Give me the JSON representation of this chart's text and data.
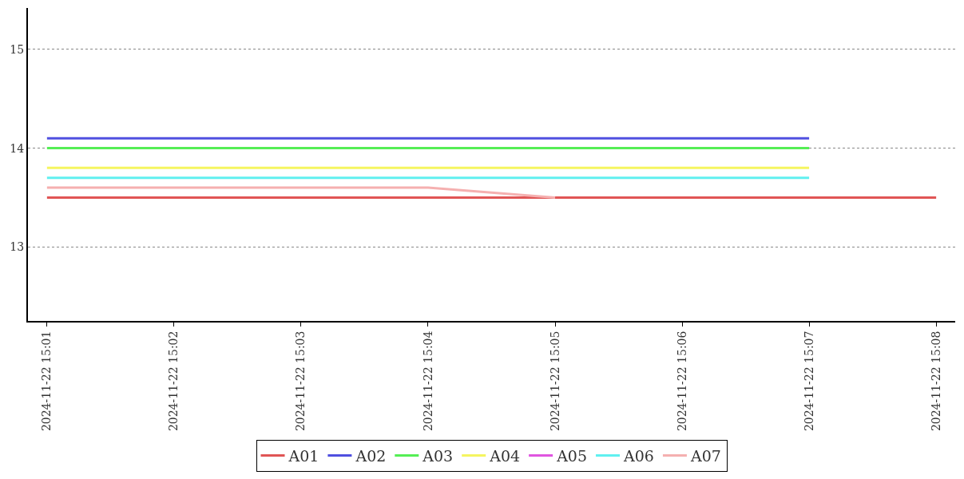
{
  "chart_data": {
    "type": "line",
    "categories": [
      "2024-11-22 15:01",
      "2024-11-22 15:02",
      "2024-11-22 15:03",
      "2024-11-22 15:04",
      "2024-11-22 15:05",
      "2024-11-22 15:06",
      "2024-11-22 15:07",
      "2024-11-22 15:08"
    ],
    "series": [
      {
        "name": "A01",
        "color": "#e05555",
        "values": [
          13.5,
          13.5,
          13.5,
          13.5,
          13.5,
          13.5,
          13.5,
          13.5
        ]
      },
      {
        "name": "A02",
        "color": "#5050e0",
        "values": [
          14.1,
          14.1,
          14.1,
          14.1,
          14.1,
          14.1,
          14.1,
          null
        ]
      },
      {
        "name": "A03",
        "color": "#55ee55",
        "values": [
          14.0,
          14.0,
          14.0,
          14.0,
          14.0,
          14.0,
          14.0,
          null
        ]
      },
      {
        "name": "A04",
        "color": "#f5f560",
        "values": [
          13.8,
          13.8,
          13.8,
          13.8,
          13.8,
          13.8,
          13.8,
          null
        ]
      },
      {
        "name": "A05",
        "color": "#e055e0",
        "values": [
          null,
          null,
          null,
          null,
          null,
          null,
          null,
          null
        ]
      },
      {
        "name": "A06",
        "color": "#60f0f0",
        "values": [
          13.7,
          13.7,
          13.7,
          13.7,
          13.7,
          13.7,
          13.7,
          null
        ]
      },
      {
        "name": "A07",
        "color": "#f5b0b0",
        "values": [
          13.6,
          13.6,
          13.6,
          13.6,
          13.5,
          null,
          null,
          null
        ]
      }
    ],
    "ylim": [
      12.25,
      15.42
    ],
    "yticks": [
      13,
      14,
      15
    ],
    "grid": "y",
    "legend": "bottom",
    "line_style": "solid",
    "marker": "none"
  }
}
